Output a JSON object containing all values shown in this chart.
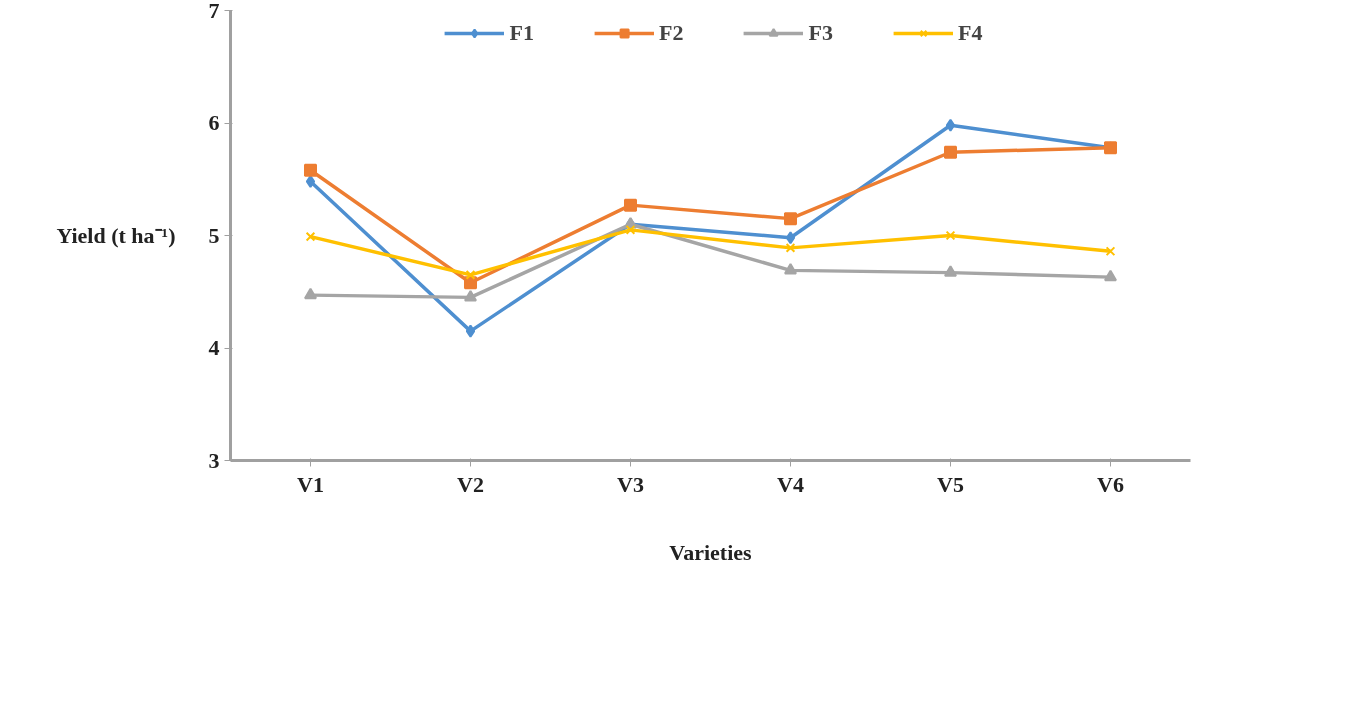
{
  "chart_data": {
    "type": "line",
    "xlabel": "Varieties",
    "ylabel": "Yield (t ha⁻¹)",
    "categories": [
      "V1",
      "V2",
      "V3",
      "V4",
      "V5",
      "V6"
    ],
    "series": [
      {
        "name": "F1",
        "color": "#4e8fd0",
        "marker": "diamond",
        "values": [
          5.48,
          4.15,
          5.1,
          4.98,
          5.98,
          5.78
        ]
      },
      {
        "name": "F2",
        "color": "#ed7d31",
        "marker": "square",
        "values": [
          5.58,
          4.58,
          5.27,
          5.15,
          5.74,
          5.78
        ]
      },
      {
        "name": "F3",
        "color": "#a5a5a5",
        "marker": "triangle",
        "values": [
          4.47,
          4.45,
          5.1,
          4.69,
          4.67,
          4.63
        ]
      },
      {
        "name": "F4",
        "color": "#ffc000",
        "marker": "cross",
        "values": [
          4.99,
          4.65,
          5.05,
          4.89,
          5.0,
          4.86
        ]
      }
    ],
    "ylim": [
      3,
      7
    ],
    "yticks": [
      3,
      4,
      5,
      6,
      7
    ],
    "grid": false,
    "legend": "top",
    "line_style": "solid"
  }
}
